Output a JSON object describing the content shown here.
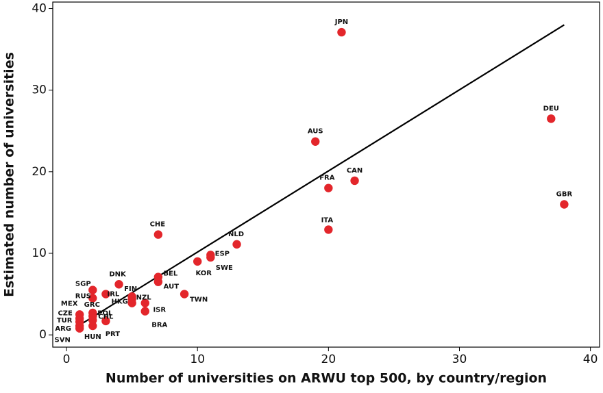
{
  "chart_data": {
    "type": "scatter",
    "x_label": "Number of universities on ARWU top 500, by country/region",
    "y_label": "Estimated number of universities",
    "xlim": [
      -1.05,
      40.7
    ],
    "ylim": [
      -1.5,
      40.8
    ],
    "xticks": [
      0,
      10,
      20,
      30,
      40
    ],
    "yticks": [
      0,
      10,
      20,
      30,
      40
    ],
    "color": "#e3262b",
    "labels": [
      "JPN",
      "DEU",
      "AUS",
      "CAN",
      "FRA",
      "GBR",
      "ITA",
      "CHE",
      "NLD",
      "ESP",
      "SWE",
      "KOR",
      "DNK",
      "BEL",
      "AUT",
      "SGP",
      "RUS",
      "IRL",
      "FIN",
      "NZL",
      "HKG",
      "TWN",
      "ISR",
      "BRA",
      "GRC",
      "POL",
      "CHL",
      "PRT",
      "HUN",
      "MEX",
      "CZE",
      "TUR",
      "ARG",
      "SVN"
    ],
    "x": [
      21,
      37,
      19,
      22,
      20,
      38,
      20,
      7,
      13,
      11,
      11,
      10,
      4,
      7,
      7,
      2,
      2,
      3,
      5,
      5,
      5,
      9,
      6,
      6,
      2,
      2,
      2,
      3,
      2,
      1,
      1,
      1,
      1,
      1
    ],
    "y": [
      37.1,
      26.5,
      23.7,
      18.9,
      18.0,
      16.0,
      12.9,
      12.3,
      11.1,
      9.8,
      9.5,
      9.0,
      6.2,
      7.1,
      6.5,
      5.5,
      4.5,
      5.0,
      4.7,
      4.4,
      3.9,
      5.0,
      3.9,
      2.9,
      2.7,
      2.3,
      1.8,
      1.7,
      1.1,
      2.5,
      2.0,
      1.6,
      1.1,
      0.8
    ],
    "trend": {
      "color": "#000000",
      "x": [
        1,
        38
      ],
      "y": [
        1.2,
        38
      ]
    }
  }
}
